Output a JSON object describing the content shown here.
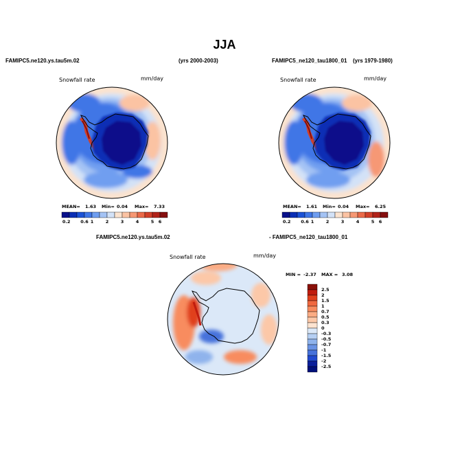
{
  "page": {
    "title": "JJA"
  },
  "colors": {
    "ocean_light": "#fbe3cf",
    "land_low": "#00137a",
    "accent_red": "#c33820"
  },
  "chart_data": [
    {
      "type": "heatmap",
      "name": "Polar stereographic map - Southern Hemisphere",
      "case": "FAMIPC5.ne120.ys.tau5m.02",
      "years": "(yrs 2000-2003)",
      "variable": "Snowfall rate",
      "units": "mm/day",
      "stats": {
        "mean_label": "MEAN=",
        "mean": "1.63",
        "min_label": "Min=",
        "min": "0.04",
        "max_label": "Max=",
        "max": "7.33"
      },
      "colorbar": {
        "ticks": [
          "0.2",
          "0.6",
          "1",
          "2",
          "3",
          "4",
          "5",
          "6"
        ],
        "colors": [
          "#08108a",
          "#0b2fb5",
          "#1b52d6",
          "#3f76e6",
          "#6f9ef0",
          "#a4c3f4",
          "#d3e2f7",
          "#fbe3cf",
          "#fbc3a3",
          "#f69874",
          "#ea6a49",
          "#d24029",
          "#b1231a",
          "#850f0f"
        ]
      }
    },
    {
      "type": "heatmap",
      "name": "Polar stereographic map - Southern Hemisphere",
      "case": "FAMIPC5_ne120_tau1800_01",
      "years": "(yrs 1979-1980)",
      "variable": "Snowfall rate",
      "units": "mm/day",
      "stats": {
        "mean_label": "MEAN=",
        "mean": "1.61",
        "min_label": "Min=",
        "min": "0.04",
        "max_label": "Max=",
        "max": "6.25"
      },
      "colorbar": {
        "ticks": [
          "0.2",
          "0.6",
          "1",
          "2",
          "3",
          "4",
          "5",
          "6"
        ],
        "colors": [
          "#08108a",
          "#0b2fb5",
          "#1b52d6",
          "#3f76e6",
          "#6f9ef0",
          "#a4c3f4",
          "#d3e2f7",
          "#fbe3cf",
          "#fbc3a3",
          "#f69874",
          "#ea6a49",
          "#d24029",
          "#b1231a",
          "#850f0f"
        ]
      }
    },
    {
      "type": "heatmap",
      "name": "Difference map",
      "case_a": "FAMIPC5.ne120.ys.tau5m.02",
      "case_b": "- FAMIPC5_ne120_tau1800_01",
      "variable": "Snowfall rate",
      "units": "mm/day",
      "stats": {
        "min_label": "MIN =",
        "min": "-2.37",
        "max_label": "MAX =",
        "max": "3.08"
      },
      "colorbar": {
        "ticks": [
          "2.5",
          "2",
          "1.5",
          "1",
          "0.7",
          "0.5",
          "0.3",
          "0",
          "-0.3",
          "-0.5",
          "-0.7",
          "-1",
          "-1.5",
          "-2",
          "-2.5"
        ],
        "colors": [
          "#8a1008",
          "#c01c0e",
          "#e0401d",
          "#f0683f",
          "#f88c5f",
          "#fbac84",
          "#fcc8a8",
          "#fde3d0",
          "#dbe8f8",
          "#b5cff3",
          "#8fb3ec",
          "#6a93e4",
          "#4672db",
          "#2049cf",
          "#0a1f9a",
          "#00107a"
        ]
      }
    }
  ]
}
